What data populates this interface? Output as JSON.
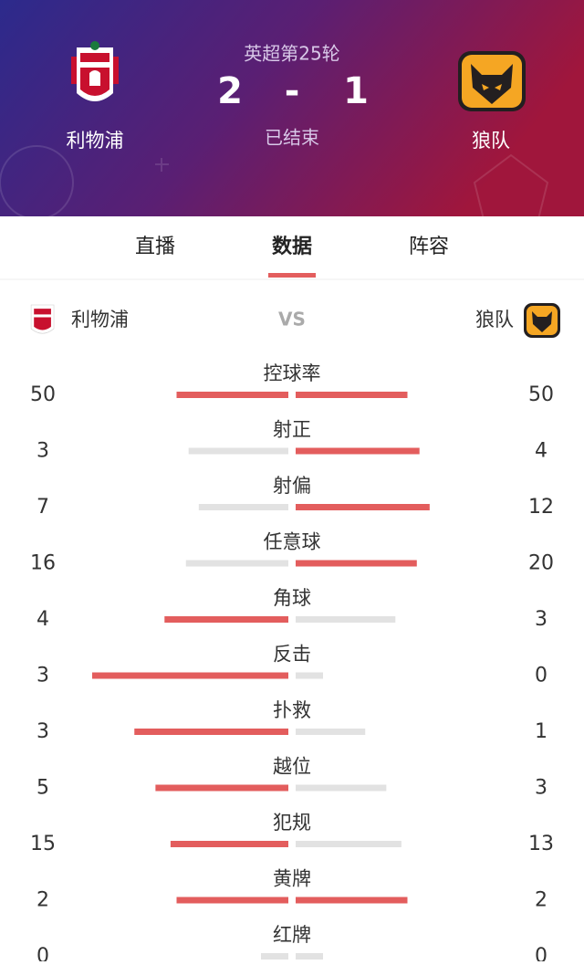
{
  "header": {
    "round": "英超第25轮",
    "separator": "-",
    "status": "已结束",
    "home": {
      "name": "利物浦",
      "score": 2
    },
    "away": {
      "name": "狼队",
      "score": 1
    }
  },
  "tabs": [
    "直播",
    "数据",
    "阵容"
  ],
  "compare": {
    "home": "利物浦",
    "vs": "VS",
    "away": "狼队"
  },
  "stats": [
    {
      "label": "控球率",
      "home": 50,
      "away": 50
    },
    {
      "label": "射正",
      "home": 3,
      "away": 4
    },
    {
      "label": "射偏",
      "home": 7,
      "away": 12
    },
    {
      "label": "任意球",
      "home": 16,
      "away": 20
    },
    {
      "label": "角球",
      "home": 4,
      "away": 3
    },
    {
      "label": "反击",
      "home": 3,
      "away": 0
    },
    {
      "label": "扑救",
      "home": 3,
      "away": 1
    },
    {
      "label": "越位",
      "home": 5,
      "away": 3
    },
    {
      "label": "犯规",
      "home": 15,
      "away": 13
    },
    {
      "label": "黄牌",
      "home": 2,
      "away": 2
    },
    {
      "label": "红牌",
      "home": 0,
      "away": 0
    }
  ]
}
